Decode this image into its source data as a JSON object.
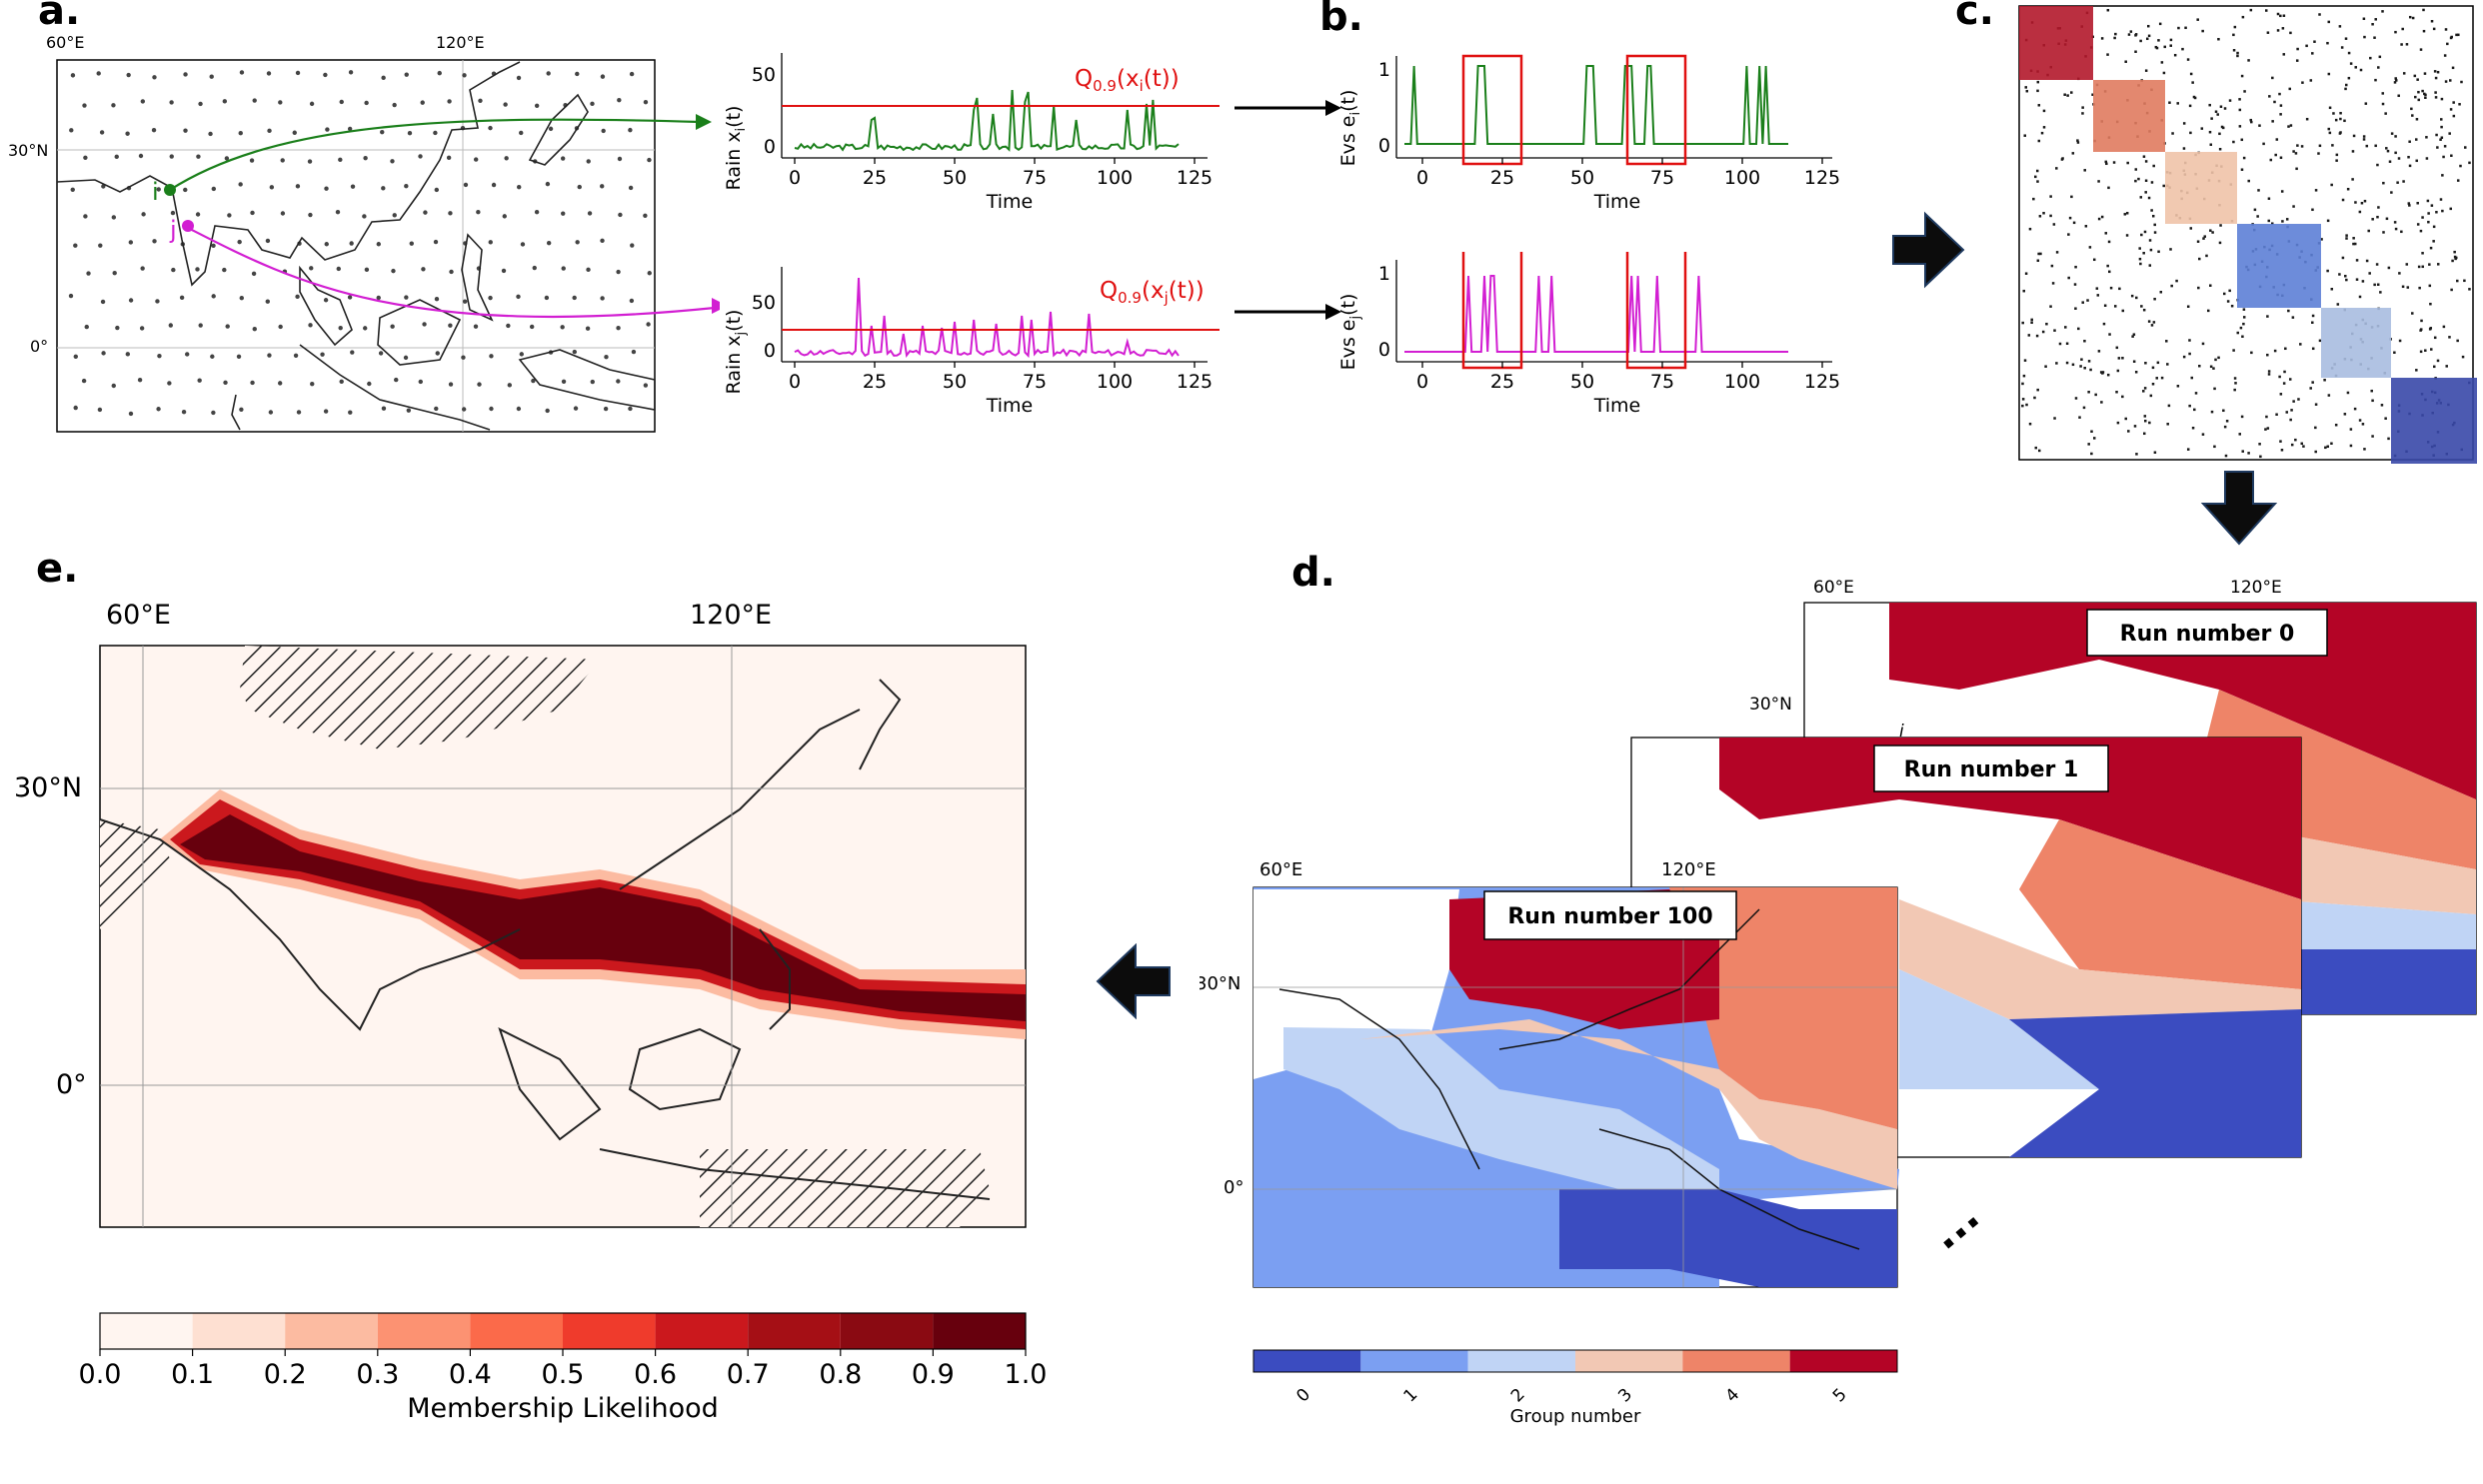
{
  "labels": {
    "a": "a.",
    "b": "b.",
    "c": "c.",
    "d": "d.",
    "e": "e."
  },
  "panel_a": {
    "lon_ticks": [
      "60°E",
      "120°E"
    ],
    "lat_ticks": [
      "30°N",
      "0°"
    ],
    "point_i": "i",
    "point_j": "j",
    "colors": {
      "i": "#1a7f1a",
      "j": "#d21ed2"
    }
  },
  "rain_i": {
    "ylabel": "Rain x",
    "ylabel_sub": "i",
    "ylabel_tail": "(t)",
    "xlabel": "Time",
    "yticks": [
      "0",
      "50"
    ],
    "xticks": [
      "0",
      "25",
      "50",
      "75",
      "100",
      "125"
    ],
    "threshold_label": "Q",
    "threshold_sub": "0.9",
    "threshold_tail": "(x",
    "threshold_tail_sub": "i",
    "threshold_end": "(t))"
  },
  "rain_j": {
    "ylabel": "Rain x",
    "ylabel_sub": "j",
    "ylabel_tail": "(t)",
    "xlabel": "Time",
    "yticks": [
      "0",
      "50"
    ],
    "xticks": [
      "0",
      "25",
      "50",
      "75",
      "100",
      "125"
    ],
    "threshold_label": "Q",
    "threshold_sub": "0.9",
    "threshold_tail": "(x",
    "threshold_tail_sub": "j",
    "threshold_end": "(t))"
  },
  "evs_i": {
    "ylabel": "Evs e",
    "ylabel_sub": "i",
    "ylabel_tail": "(t)",
    "xlabel": "Time",
    "yticks": [
      "0",
      "1"
    ],
    "xticks": [
      "0",
      "25",
      "50",
      "75",
      "100",
      "125"
    ]
  },
  "evs_j": {
    "ylabel": "Evs e",
    "ylabel_sub": "j",
    "ylabel_tail": "(t)",
    "xlabel": "Time",
    "yticks": [
      "0",
      "1"
    ],
    "xticks": [
      "0",
      "25",
      "50",
      "75",
      "100",
      "125"
    ]
  },
  "panel_c": {
    "block_colors": [
      "#b2182b",
      "#e07b5f",
      "#f0c3a8",
      "#5d7fd6",
      "#a9bde0",
      "#3848a8"
    ]
  },
  "panel_d": {
    "runs": [
      "Run number 0",
      "Run number 1",
      "Run number 100"
    ],
    "lon_ticks": [
      "60°E",
      "120°E"
    ],
    "lat_ticks": [
      "30°N",
      "0°"
    ],
    "stray_label": "i",
    "colorbar_label": "Group number",
    "colorbar_ticks": [
      "0",
      "1",
      "2",
      "3",
      "4",
      "5"
    ],
    "colorbar_colors": [
      "#3b4cc0",
      "#7b9ff2",
      "#c0d4f5",
      "#f2c8b4",
      "#ee8468",
      "#b40426"
    ],
    "ellipsis": "..."
  },
  "panel_e": {
    "lon_ticks": [
      "60°E",
      "120°E"
    ],
    "lat_ticks": [
      "30°N",
      "0°"
    ],
    "colorbar_label": "Membership Likelihood",
    "colorbar_ticks": [
      "0.0",
      "0.1",
      "0.2",
      "0.3",
      "0.4",
      "0.5",
      "0.6",
      "0.7",
      "0.8",
      "0.9",
      "1.0"
    ],
    "colorbar_colors": [
      "#fff5f0",
      "#fee0d2",
      "#fcbba1",
      "#fc9272",
      "#fb6a4a",
      "#ef3b2c",
      "#cb181d",
      "#a50f15",
      "#8a0a12",
      "#67000d"
    ]
  }
}
